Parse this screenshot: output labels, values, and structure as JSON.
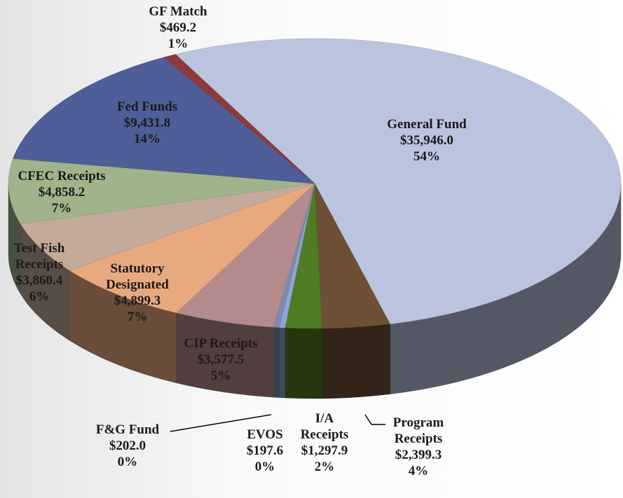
{
  "chart_data": {
    "type": "pie3d",
    "categories": [
      "General Fund",
      "Program Receipts",
      "I/A Receipts",
      "EVOS",
      "F&G Fund",
      "CIP Receipts",
      "Statutory Designated",
      "Test Fish Receipts",
      "CFEC Receipts",
      "Fed Funds",
      "GF Match"
    ],
    "values": [
      35946.0,
      2399.3,
      1297.9,
      197.6,
      202.0,
      3577.5,
      4899.3,
      3860.4,
      4858.2,
      9431.8,
      469.2
    ],
    "value_labels": [
      "$35,946.0",
      "$2,399.3",
      "$1,297.9",
      "$197.6",
      "$202.0",
      "$3,577.5",
      "$4,899.3",
      "$3,860.4",
      "$4,858.2",
      "$9,431.8",
      "$469.2"
    ],
    "percent_labels": [
      "54%",
      "4%",
      "2%",
      "0%",
      "0%",
      "5%",
      "7%",
      "6%",
      "7%",
      "14%",
      "1%"
    ],
    "colors": [
      "#bac4de",
      "#6e5036",
      "#4f7b22",
      "#8fa6d6",
      "#7c8bb0",
      "#b38b8d",
      "#e9a97f",
      "#c4aa9a",
      "#9fb48b",
      "#4f5e98",
      "#8c3b3b"
    ]
  }
}
